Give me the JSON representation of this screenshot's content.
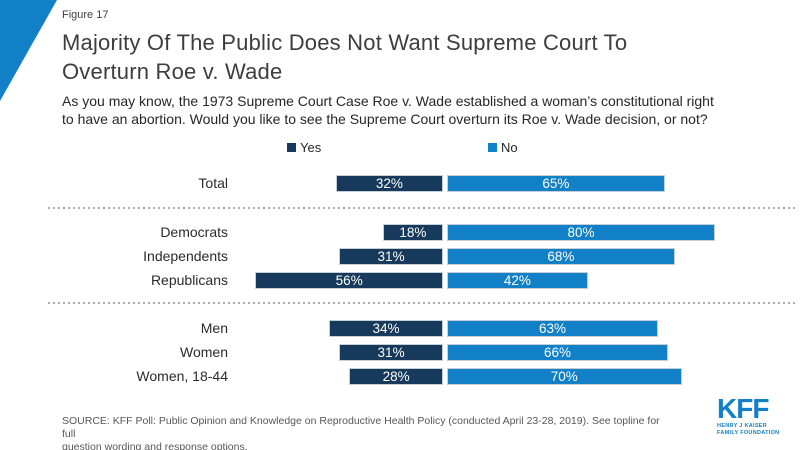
{
  "figure_label": "Figure 17",
  "title_lines": [
    "Majority Of The Public Does Not Want Supreme Court To",
    "Overturn Roe v. Wade"
  ],
  "subtitle_lines": [
    "As you may know, the 1973 Supreme Court Case Roe v. Wade established a woman’s constitutional right",
    "to have an abortion. Would you like to see the Supreme Court overturn its Roe v. Wade decision, or not?"
  ],
  "legend": {
    "yes_label": "Yes",
    "no_label": "No"
  },
  "colors": {
    "yes": "#17395C",
    "no": "#1280C6",
    "accent_triangle": "#1280C6",
    "logo_blue": "#1280C6",
    "dashed_line": "#ADADAD"
  },
  "chart_data": {
    "type": "bar",
    "orientation": "horizontal",
    "categories": [
      "Total",
      "Democrats",
      "Independents",
      "Republicans",
      "Men",
      "Women",
      "Women, 18-44"
    ],
    "series": [
      {
        "name": "Yes",
        "color": "#17395C",
        "values": [
          32,
          18,
          31,
          56,
          34,
          31,
          28
        ]
      },
      {
        "name": "No",
        "color": "#1280C6",
        "values": [
          65,
          80,
          68,
          42,
          63,
          66,
          70
        ]
      }
    ],
    "value_suffix": "%",
    "value_labels": "inside",
    "legend_position": "top",
    "groups": [
      [
        "Total"
      ],
      [
        "Democrats",
        "Independents",
        "Republicans"
      ],
      [
        "Men",
        "Women",
        "Women, 18-44"
      ]
    ]
  },
  "source_lines": [
    "SOURCE: KFF Poll: Public Opinion and Knowledge on Reproductive Health Policy (conducted April 23-28, 2019). See topline for full",
    "question wording and response options."
  ],
  "logo": {
    "text": "KFF",
    "subtext_lines": [
      "HENRY J KAISER",
      "FAMILY FOUNDATION"
    ]
  }
}
